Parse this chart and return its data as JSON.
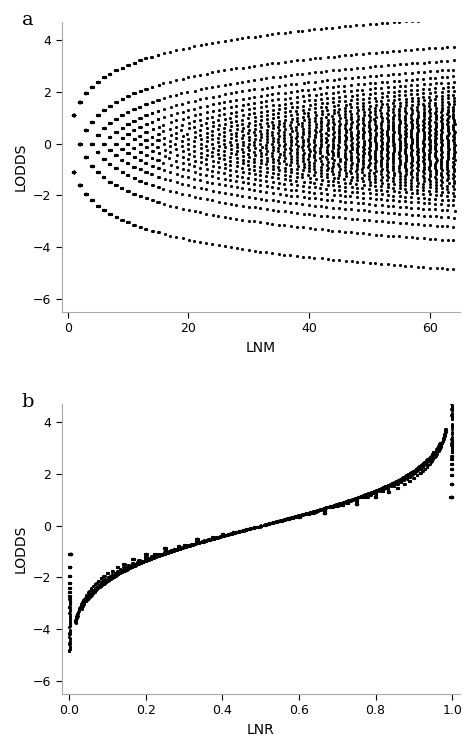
{
  "panel_a_label": "a",
  "panel_b_label": "b",
  "xlabel_a": "LNM",
  "xlabel_b": "LNR",
  "ylabel": "LODDS",
  "xlim_a": [
    -1,
    65
  ],
  "xlim_b": [
    -0.02,
    1.02
  ],
  "ylim_a": [
    -6.5,
    4.7
  ],
  "ylim_b": [
    -6.5,
    4.7
  ],
  "xticks_a": [
    0,
    20,
    40,
    60
  ],
  "xticks_b": [
    0.0,
    0.2,
    0.4,
    0.6,
    0.8,
    1.0
  ],
  "yticks": [
    -6,
    -4,
    -2,
    0,
    2,
    4
  ],
  "dot_color": "#000000",
  "dot_size": 5,
  "background_color": "#ffffff",
  "spine_color": "#aaaaaa",
  "font_size_label": 10,
  "font_size_tick": 9,
  "font_size_panel": 14
}
